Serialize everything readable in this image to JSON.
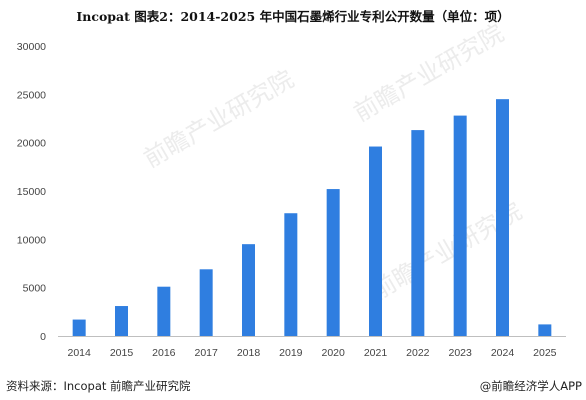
{
  "title": "Incopat  图表2：2014-2025 年中国石墨烯行业专利公开数量（单位：项）",
  "source": "资料来源：Incopat 前瞻产业研究院",
  "credit": "@前瞻经济学人APP",
  "watermark": {
    "text": "前瞻产业研究院"
  },
  "colors": {
    "bar": "#2F7EE0",
    "axis": "#BFBFBF",
    "watermark": "#ECECEC"
  },
  "chart_data": {
    "type": "bar",
    "title": "Incopat  图表2：2014-2025 年中国石墨烯行业专利公开数量（单位：项）",
    "xlabel": "",
    "ylabel": "",
    "categories": [
      "2014",
      "2015",
      "2016",
      "2017",
      "2018",
      "2019",
      "2020",
      "2021",
      "2022",
      "2023",
      "2024",
      "2025"
    ],
    "values": [
      1700,
      3100,
      5100,
      6900,
      9500,
      12700,
      15200,
      19600,
      21300,
      22800,
      24500,
      1200
    ],
    "ylim": [
      0,
      30000
    ],
    "yticks": [
      "0",
      "5000",
      "10000",
      "15000",
      "20000",
      "25000",
      "30000"
    ],
    "grid": false
  }
}
